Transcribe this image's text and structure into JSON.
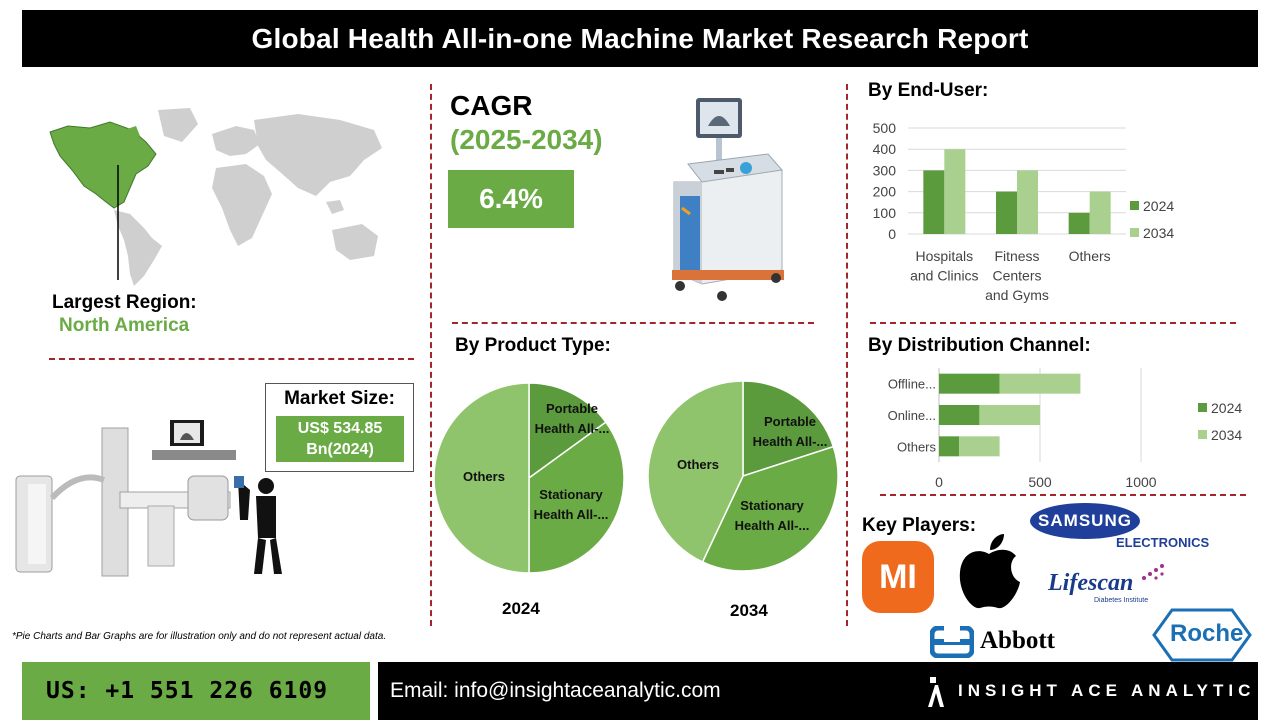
{
  "header": {
    "title": "Global Health All-in-one Machine Market Research Report"
  },
  "region": {
    "label": "Largest Region:",
    "value": "North America"
  },
  "cagr": {
    "title": "CAGR",
    "period": "(2025-2034)",
    "value": "6.4%"
  },
  "market_size": {
    "label": "Market Size:",
    "value_line1": "US$ 534.85",
    "value_line2": "Bn(2024)"
  },
  "sections": {
    "end_user": "By End-User:",
    "product_type": "By Product Type:",
    "distribution": "By Distribution Channel:",
    "key_players": "Key Players:"
  },
  "footnote": "*Pie Charts and Bar Graphs are for illustration only and do not represent actual data.",
  "footer": {
    "phone": "US: +1 551 226 6109",
    "email": "Email: info@insightaceanalytic.com",
    "brand": "INSIGHT ACE ANALYTIC"
  },
  "key_players": {
    "samsung_line1": "SAMSUNG",
    "samsung_line2": "ELECTRONICS",
    "lifescan": "Lifescan",
    "lifescan_sub": "Diabetes Institute",
    "abbott": "Abbott",
    "roche": "Roche",
    "mi": "MI"
  },
  "colors": {
    "green_dark": "#5b9a3d",
    "green_light": "#a9d08e",
    "green_mid": "#6aab45",
    "pie_a": "#5b9a3d",
    "pie_b": "#6aab45",
    "pie_c": "#8fc36c",
    "red": "#a3262a"
  },
  "chart_data": [
    {
      "type": "bar",
      "title": "By End-User:",
      "categories": [
        "Hospitals and Clinics",
        "Fitness Centers and Gyms",
        "Others"
      ],
      "category_lines": [
        [
          "Hospitals",
          "and Clinics"
        ],
        [
          "Fitness",
          "Centers",
          "and Gyms"
        ],
        [
          "Others"
        ]
      ],
      "series": [
        {
          "name": "2024",
          "values": [
            300,
            200,
            100
          ]
        },
        {
          "name": "2034",
          "values": [
            400,
            300,
            200
          ]
        }
      ],
      "ylim": [
        0,
        500
      ],
      "yticks": [
        0,
        100,
        200,
        300,
        400,
        500
      ],
      "legend": "right"
    },
    {
      "type": "bar",
      "orientation": "horizontal",
      "stacked": true,
      "title": "By Distribution Channel:",
      "categories": [
        "Offline...",
        "Online...",
        "Others"
      ],
      "series": [
        {
          "name": "2024",
          "values": [
            300,
            200,
            100
          ]
        },
        {
          "name": "2034",
          "values": [
            400,
            300,
            200
          ]
        }
      ],
      "xlim": [
        0,
        1000
      ],
      "xticks": [
        0,
        500,
        1000
      ],
      "legend": "right"
    },
    {
      "type": "pie",
      "title": "2024",
      "labels": [
        "Portable Health All-...",
        "Stationary Health All-...",
        "Others"
      ],
      "label_lines": [
        [
          "Portable",
          "Health All-..."
        ],
        [
          "Stationary",
          "Health All-..."
        ],
        [
          "Others"
        ]
      ],
      "values": [
        15,
        35,
        50
      ]
    },
    {
      "type": "pie",
      "title": "2034",
      "labels": [
        "Portable Health All-...",
        "Stationary Health All-...",
        "Others"
      ],
      "label_lines": [
        [
          "Portable",
          "Health All-..."
        ],
        [
          "Stationary",
          "Health All-..."
        ],
        [
          "Others"
        ]
      ],
      "values": [
        20,
        37,
        43
      ]
    }
  ]
}
